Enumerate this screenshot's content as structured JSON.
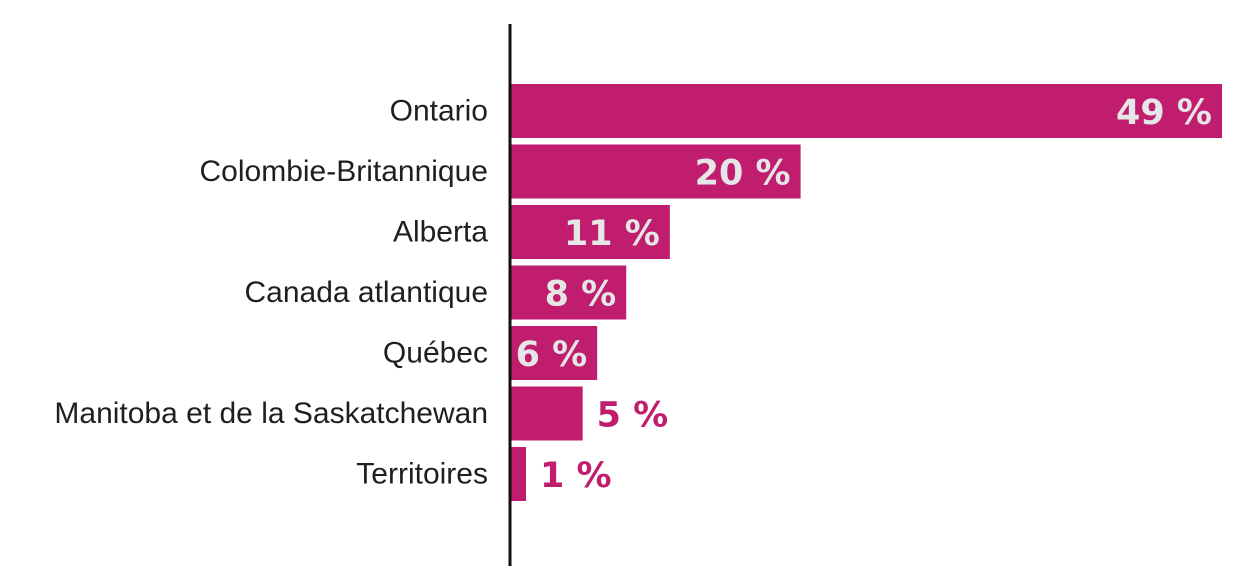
{
  "chart_data": {
    "type": "bar",
    "orientation": "horizontal",
    "title": "",
    "xlabel": "",
    "ylabel": "",
    "categories": [
      "Ontario",
      "Colombie-Britannique",
      "Alberta",
      "Canada atlantique",
      "Québec",
      "Manitoba et de la Saskatchewan",
      "Territoires"
    ],
    "values": [
      49,
      20,
      11,
      8,
      6,
      5,
      1
    ],
    "value_labels": [
      "49 %",
      "20 %",
      "11 %",
      "8 %",
      "6 %",
      "5 %",
      "1 %"
    ],
    "xlim": [
      0,
      49
    ],
    "grid": false,
    "legend": "none"
  },
  "colors": {
    "bar": "#c01d6e",
    "label_inside": "#e6e6e6",
    "label_outside": "#c01d6e",
    "axis": "#111111",
    "category_text": "#1f1f1f"
  }
}
